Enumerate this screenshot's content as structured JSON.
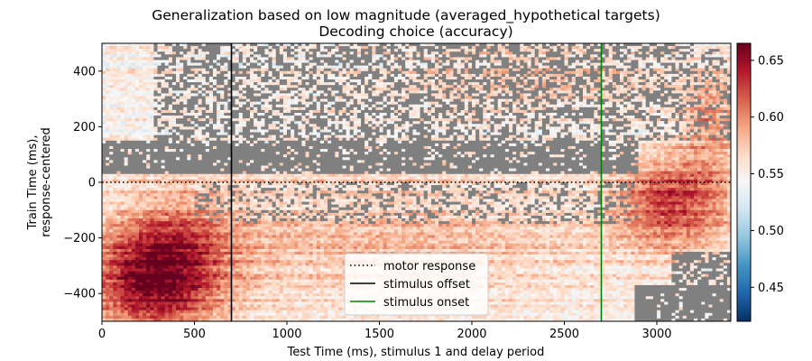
{
  "chart_data": {
    "type": "heatmap",
    "title": "Generalization based on low magnitude (averaged_hypothetical targets)",
    "subtitle": "Decoding choice (accuracy)",
    "xlabel": "Test Time (ms), stimulus 1 and delay period",
    "ylabel_line1": "Train Time (ms),",
    "ylabel_line2": "response-centered",
    "xlim": [
      0,
      3400
    ],
    "ylim": [
      -500,
      500
    ],
    "xticks": [
      0,
      500,
      1000,
      1500,
      2000,
      2500,
      3000
    ],
    "yticks": [
      -400,
      -200,
      0,
      200,
      400
    ],
    "colorbar": {
      "colormap": "RdBu_r",
      "vmin": 0.42,
      "vmax": 0.665,
      "ticks": [
        0.45,
        0.5,
        0.55,
        0.6,
        0.65
      ],
      "tick_labels": [
        "0.45",
        "0.50",
        "0.55",
        "0.60",
        "0.65"
      ]
    },
    "mask_color": "#808080",
    "grid": false,
    "legend_position": "lower-center",
    "lines": [
      {
        "label": "motor response",
        "orientation": "horizontal",
        "value": 0,
        "color": "#000000",
        "style": "dotted"
      },
      {
        "label": "stimulus offset",
        "orientation": "vertical",
        "value": 700,
        "color": "#000000",
        "style": "solid"
      },
      {
        "label": "stimulus onset",
        "orientation": "vertical",
        "value": 2700,
        "color": "#008000",
        "style": "solid"
      }
    ],
    "regions": [
      {
        "x": [
          0,
          700
        ],
        "y": [
          -500,
          -20
        ],
        "level": "high"
      },
      {
        "x": [
          2900,
          3400
        ],
        "y": [
          -300,
          0
        ],
        "level": "high"
      },
      {
        "x": [
          0,
          3400
        ],
        "y": [
          0,
          500
        ],
        "level": "moderate"
      },
      {
        "x": [
          300,
          3400
        ],
        "y": [
          60,
          500
        ],
        "level": "non-significant, largely masked"
      },
      {
        "x": [
          0,
          2900
        ],
        "y": [
          60,
          150
        ],
        "level": "non-significant, masked band"
      },
      {
        "x": [
          2900,
          3400
        ],
        "y": [
          -500,
          -400
        ],
        "level": "non-significant, masked"
      }
    ]
  }
}
